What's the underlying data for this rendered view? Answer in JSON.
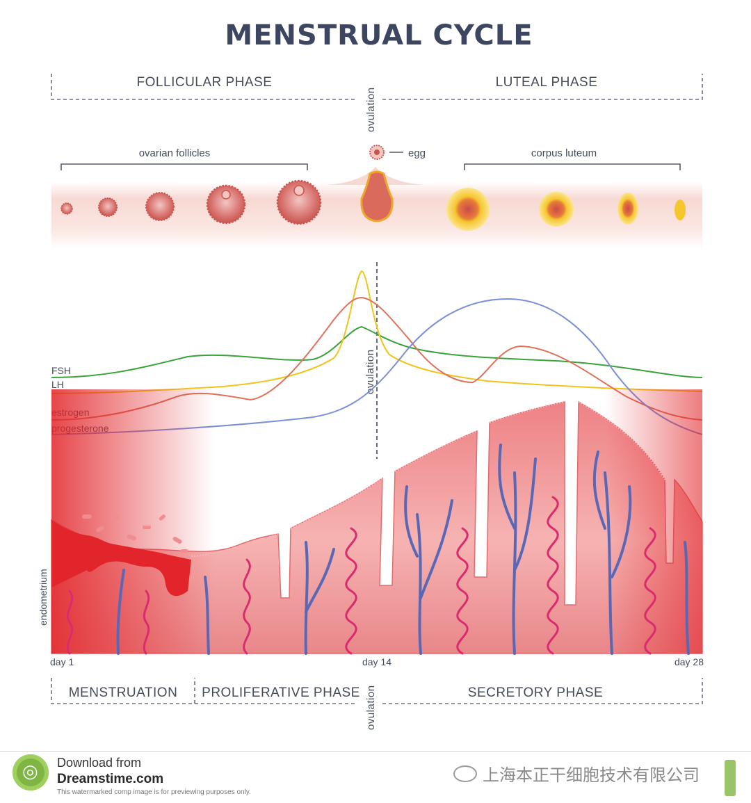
{
  "title": "MENSTRUAL CYCLE",
  "top_phases": {
    "follicular": "FOLLICULAR PHASE",
    "luteal": "LUTEAL PHASE",
    "ovulation": "ovulation"
  },
  "ovary": {
    "follicles_label": "ovarian follicles",
    "egg_label": "egg",
    "corpus_label": "corpus luteum"
  },
  "hormones": {
    "ovulation": "ovulation",
    "labels": [
      "FSH",
      "LH",
      "estrogen",
      "progesterone"
    ],
    "colors": {
      "FSH": "#3aa23a",
      "LH": "#f0c419",
      "estrogen": "#e0705a",
      "progesterone": "#7b8fd6"
    }
  },
  "endometrium": {
    "label": "endometrium",
    "tissue_color": "#e96a6f",
    "vessel_color": "#5a67b5",
    "gland_color": "#d92c6e"
  },
  "days": {
    "start": "day 1",
    "mid": "day 14",
    "end": "day 28"
  },
  "bottom_phases": {
    "menstruation": "MENSTRUATION",
    "proliferative": "PROLIFERATIVE PHASE",
    "secretory": "SECRETORY PHASE",
    "ovulation": "ovulation"
  },
  "footer": {
    "download": "Download from",
    "site": "Dreamstime.com",
    "note": "This watermarked comp image is for previewing purposes only.",
    "company": "上海本正干细胞技术有限公司"
  }
}
